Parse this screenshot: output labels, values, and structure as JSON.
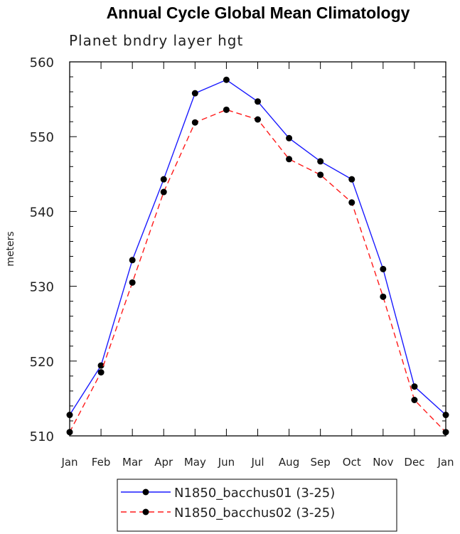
{
  "chart_data": {
    "type": "line",
    "title": "Annual Cycle Global Mean Climatology",
    "subtitle": "Planet bndry layer hgt",
    "xlabel": "",
    "ylabel": "meters",
    "categories": [
      "Jan",
      "Feb",
      "Mar",
      "Apr",
      "May",
      "Jun",
      "Jul",
      "Aug",
      "Sep",
      "Oct",
      "Nov",
      "Dec",
      "Jan"
    ],
    "ylim": [
      510,
      560
    ],
    "yticks": [
      510,
      520,
      530,
      540,
      550,
      560
    ],
    "grid": false,
    "legend_position": "bottom",
    "series": [
      {
        "name": "N1850_bacchus01 (3-25)",
        "color": "#1a1aff",
        "dash": "solid",
        "marker": "circle",
        "values": [
          512.8,
          519.4,
          533.5,
          544.3,
          555.8,
          557.6,
          554.7,
          549.8,
          546.7,
          544.3,
          532.3,
          516.6,
          512.8
        ]
      },
      {
        "name": "N1850_bacchus02 (3-25)",
        "color": "#ff1a1a",
        "dash": "dashed",
        "marker": "circle",
        "values": [
          510.5,
          518.5,
          530.5,
          542.6,
          551.9,
          553.6,
          552.3,
          547.0,
          544.9,
          541.2,
          528.6,
          514.8,
          510.5
        ]
      }
    ]
  }
}
